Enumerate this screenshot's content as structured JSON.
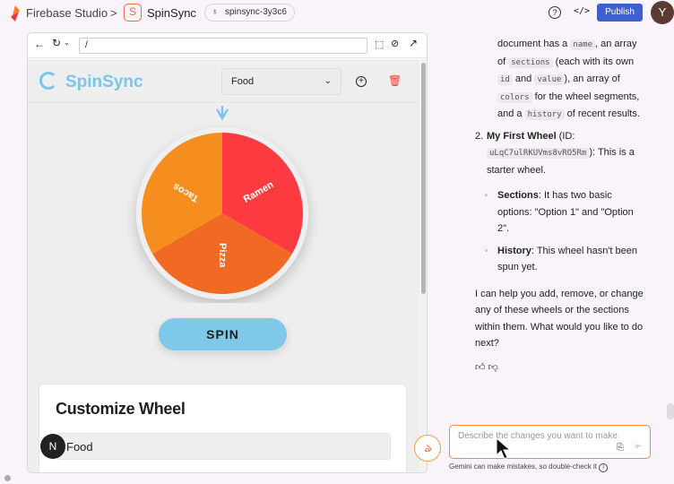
{
  "topbar": {
    "studio": "Firebase Studio",
    "separator": ">",
    "project": "SpinSync",
    "workspace": "spinsync-3y3c6",
    "publish": "Publish",
    "avatar": "Y"
  },
  "browser": {
    "url": "/"
  },
  "app": {
    "brand": "SpinSync",
    "selected_wheel": "Food",
    "spin": "SPIN",
    "customize_title": "Customize Wheel",
    "wheel_name_value": "Food",
    "badge": "N"
  },
  "wheel": {
    "sections": [
      {
        "label": "Ramen",
        "color": "#fc3a40"
      },
      {
        "label": "Pizza",
        "color": "#f06a24"
      },
      {
        "label": "Tacos",
        "color": "#f58e1e"
      }
    ]
  },
  "chat": {
    "p1": [
      "document has a ",
      "name",
      ", an array of ",
      "sections",
      " (each with its own ",
      "id",
      " and ",
      "value",
      "), an array of ",
      "colors",
      " for the wheel segments, and a ",
      "history",
      " of recent results."
    ],
    "item2_num": "2.",
    "item2_title": "My First Wheel",
    "item2_pre": " (ID: ",
    "item2_id": "uLqC7ulRKUVms8vRO5Rm",
    "item2_post": "): This is a starter wheel.",
    "sub1_title": "Sections",
    "sub1_text": ": It has two basic options: \"Option 1\" and \"Option 2\".",
    "sub2_title": "History",
    "sub2_text": ": This wheel hasn't been spun yet.",
    "closing": "I can help you add, remove, or change any of these wheels or the sections within them. What would you like to do next?",
    "placeholder": "Describe the changes you want to make",
    "disclaimer": "Gemini can make mistakes, so double-check it"
  }
}
